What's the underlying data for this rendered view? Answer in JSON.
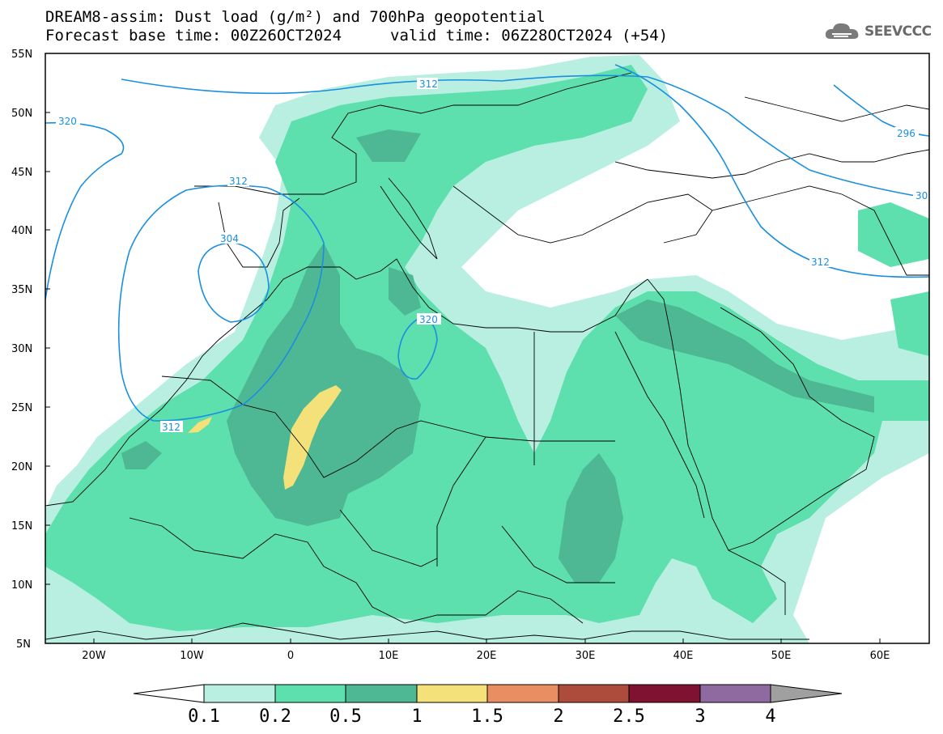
{
  "header": {
    "title_line1": "DREAM8-assim: Dust load (g/m²) and 700hPa geopotential",
    "title_line2": "Forecast base time: 00Z26OCT2024",
    "valid_time": "valid time: 06Z28OCT2024 (+54)"
  },
  "logo": {
    "text": "SEEVCCC",
    "icon": "cloud-icon"
  },
  "map": {
    "lat_labels": [
      "55N",
      "50N",
      "45N",
      "40N",
      "35N",
      "30N",
      "25N",
      "20N",
      "15N",
      "10N",
      "5N"
    ],
    "lon_labels": [
      "20W",
      "10W",
      "0",
      "10E",
      "20E",
      "30E",
      "40E",
      "50E",
      "60E"
    ],
    "contour_labels": [
      "312",
      "320",
      "312",
      "304",
      "320",
      "312",
      "296",
      "312",
      "30"
    ]
  },
  "colorbar": {
    "labels": [
      "0.1",
      "0.2",
      "0.5",
      "1",
      "1.5",
      "2",
      "2.5",
      "3",
      "4"
    ],
    "colors": [
      "#ffffff",
      "#b8efe0",
      "#5ddfae",
      "#4db893",
      "#f5e17a",
      "#e88e62",
      "#ad4b3d",
      "#7e1230",
      "#8f6aa0",
      "#a0a0a0"
    ]
  }
}
